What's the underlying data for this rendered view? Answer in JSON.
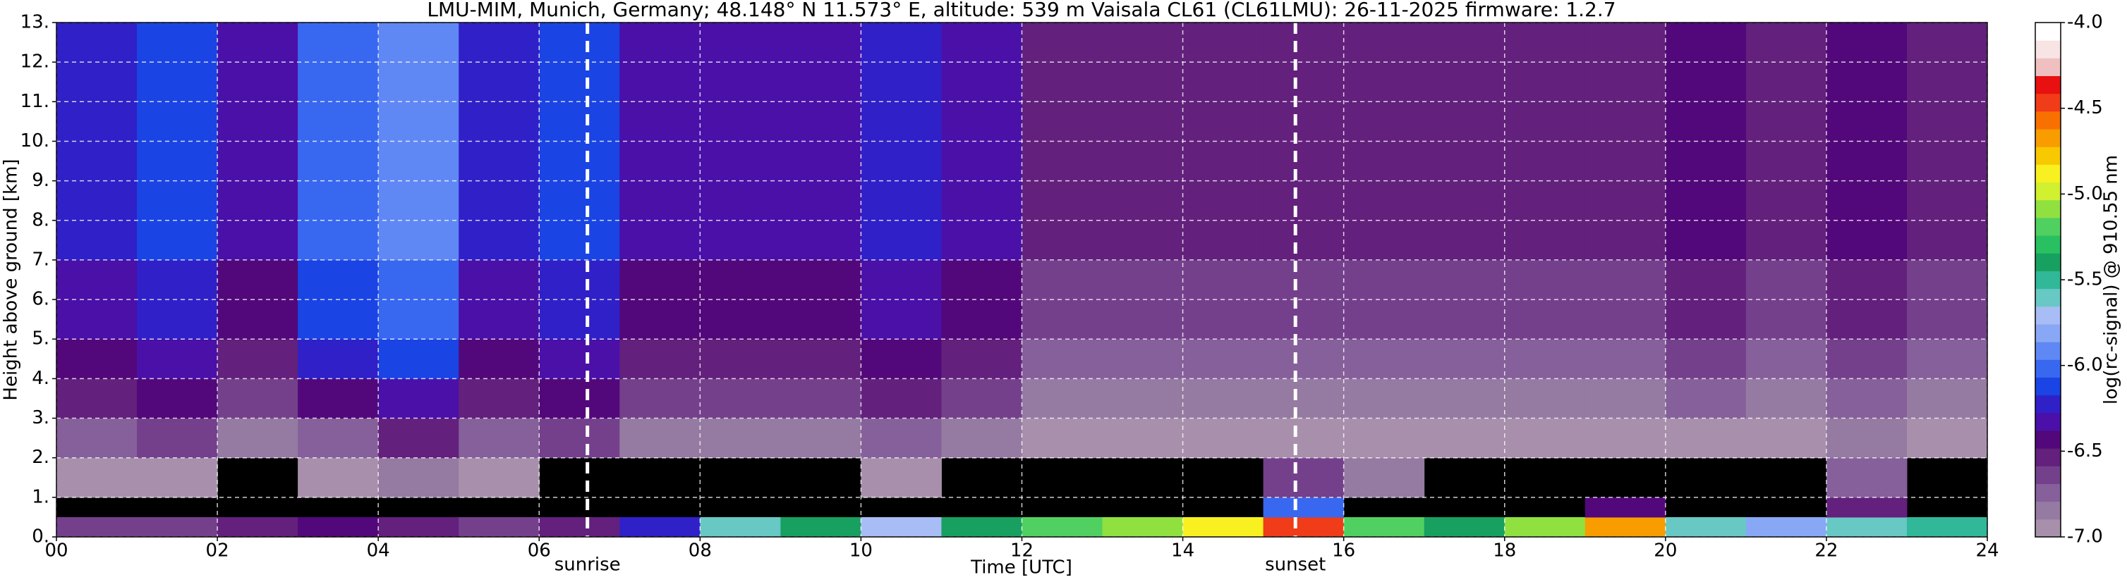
{
  "chart_data": {
    "type": "heatmap",
    "title": "LMU-MIM, Munich, Germany; 48.148° N 11.573° E, altitude: 539 m    Vaisala CL61 (CL61LMU): 26-11-2025    firmware: 1.2.7",
    "xlabel": "Time [UTC]",
    "ylabel": "Height above ground [km]",
    "colorbar_label": "log(rc-signal) @ 910.55 nm",
    "xlim": [
      0,
      24
    ],
    "ylim": [
      0,
      13
    ],
    "zlim": [
      -7,
      -4
    ],
    "xticks": [
      {
        "value": 0,
        "label": "00"
      },
      {
        "value": 2,
        "label": "02"
      },
      {
        "value": 4,
        "label": "04"
      },
      {
        "value": 6,
        "label": "06"
      },
      {
        "value": 8,
        "label": "08"
      },
      {
        "value": 10,
        "label": "10"
      },
      {
        "value": 12,
        "label": "12"
      },
      {
        "value": 14,
        "label": "14"
      },
      {
        "value": 16,
        "label": "16"
      },
      {
        "value": 18,
        "label": "18"
      },
      {
        "value": 20,
        "label": "20"
      },
      {
        "value": 22,
        "label": "22"
      },
      {
        "value": 24,
        "label": "24"
      }
    ],
    "yticks": [
      {
        "value": 0,
        "label": "0."
      },
      {
        "value": 1,
        "label": "1."
      },
      {
        "value": 2,
        "label": "2."
      },
      {
        "value": 3,
        "label": "3."
      },
      {
        "value": 4,
        "label": "4."
      },
      {
        "value": 5,
        "label": "5."
      },
      {
        "value": 6,
        "label": "6."
      },
      {
        "value": 7,
        "label": "7."
      },
      {
        "value": 8,
        "label": "8."
      },
      {
        "value": 9,
        "label": "9."
      },
      {
        "value": 10,
        "label": "10."
      },
      {
        "value": 11,
        "label": "11."
      },
      {
        "value": 12,
        "label": "12."
      },
      {
        "value": 13,
        "label": "13."
      }
    ],
    "zticks": [
      {
        "value": -4,
        "label": "-4.0"
      },
      {
        "value": -4.5,
        "label": "-4.5"
      },
      {
        "value": -5,
        "label": "-5.0"
      },
      {
        "value": -5.5,
        "label": "-5.5"
      },
      {
        "value": -6,
        "label": "-6.0"
      },
      {
        "value": -6.5,
        "label": "-6.5"
      },
      {
        "value": -7,
        "label": "-7.0"
      }
    ],
    "colorscale": [
      "#a890ac",
      "#957aa2",
      "#86609a",
      "#74408c",
      "#63207c",
      "#52087a",
      "#4a10a8",
      "#3020c8",
      "#1a44e4",
      "#3868f0",
      "#6088f4",
      "#88a8f6",
      "#a8bcf6",
      "#68c8c4",
      "#30b898",
      "#18a060",
      "#28c060",
      "#50d060",
      "#90e040",
      "#d0f030",
      "#f8f020",
      "#f8c800",
      "#f89c00",
      "#f87000",
      "#f03c18",
      "#e81010",
      "#f0c0c0",
      "#f8e4e4",
      "#ffffff"
    ],
    "grid": true,
    "x_edges": [
      0,
      1,
      2,
      3,
      4,
      5,
      6,
      7,
      8,
      9,
      10,
      11,
      12,
      13,
      14,
      15,
      16,
      17,
      18,
      19,
      20,
      21,
      22,
      23,
      24
    ],
    "y_edges": [
      0,
      0.5,
      1,
      2,
      3,
      4,
      5,
      6,
      7,
      8,
      9,
      10,
      11,
      12,
      13
    ],
    "z": [
      [
        -6.6,
        -6.6,
        -6.5,
        -6.4,
        -6.5,
        -6.6,
        -6.5,
        -6.2,
        -5.6,
        -5.4,
        -5.7,
        -5.4,
        -5.2,
        -5.1,
        -4.9,
        -4.5,
        -5.2,
        -5.4,
        -5.1,
        -4.7,
        -5.6,
        -5.8,
        -5.6,
        -5.5
      ],
      [
        null,
        null,
        null,
        null,
        null,
        null,
        null,
        null,
        null,
        null,
        null,
        null,
        null,
        null,
        null,
        -6.0,
        null,
        null,
        null,
        -6.4,
        null,
        null,
        -6.5,
        null
      ],
      [
        -6.9,
        -6.9,
        null,
        -6.9,
        -6.8,
        -6.9,
        null,
        null,
        null,
        null,
        -6.9,
        null,
        null,
        null,
        null,
        -6.6,
        -6.8,
        null,
        null,
        null,
        null,
        null,
        -6.7,
        null
      ],
      [
        -6.7,
        -6.6,
        -6.8,
        -6.7,
        -6.5,
        -6.7,
        -6.6,
        -6.8,
        -6.8,
        -6.8,
        -6.7,
        -6.8,
        -6.9,
        -6.9,
        -6.9,
        -6.9,
        -6.9,
        -6.9,
        -6.9,
        -6.9,
        -6.9,
        -6.9,
        -6.8,
        -6.9
      ],
      [
        -6.5,
        -6.4,
        -6.6,
        -6.4,
        -6.3,
        -6.5,
        -6.4,
        -6.6,
        -6.6,
        -6.6,
        -6.5,
        -6.6,
        -6.8,
        -6.8,
        -6.8,
        -6.8,
        -6.8,
        -6.8,
        -6.8,
        -6.8,
        -6.7,
        -6.8,
        -6.7,
        -6.8
      ],
      [
        -6.4,
        -6.3,
        -6.5,
        -6.2,
        -6.1,
        -6.4,
        -6.3,
        -6.5,
        -6.5,
        -6.5,
        -6.4,
        -6.5,
        -6.7,
        -6.7,
        -6.7,
        -6.7,
        -6.7,
        -6.7,
        -6.7,
        -6.7,
        -6.6,
        -6.7,
        -6.6,
        -6.7
      ],
      [
        -6.3,
        -6.2,
        -6.4,
        -6.1,
        -6.0,
        -6.3,
        -6.2,
        -6.4,
        -6.4,
        -6.4,
        -6.3,
        -6.4,
        -6.6,
        -6.6,
        -6.6,
        -6.6,
        -6.6,
        -6.6,
        -6.6,
        -6.6,
        -6.5,
        -6.6,
        -6.5,
        -6.6
      ],
      [
        -6.3,
        -6.2,
        -6.4,
        -6.1,
        -6.0,
        -6.3,
        -6.2,
        -6.4,
        -6.4,
        -6.4,
        -6.3,
        -6.4,
        -6.6,
        -6.6,
        -6.6,
        -6.6,
        -6.6,
        -6.6,
        -6.6,
        -6.6,
        -6.5,
        -6.6,
        -6.5,
        -6.6
      ],
      [
        -6.2,
        -6.1,
        -6.3,
        -6.0,
        -5.9,
        -6.2,
        -6.1,
        -6.3,
        -6.3,
        -6.3,
        -6.2,
        -6.3,
        -6.5,
        -6.5,
        -6.5,
        -6.5,
        -6.5,
        -6.5,
        -6.5,
        -6.5,
        -6.4,
        -6.5,
        -6.4,
        -6.5
      ],
      [
        -6.2,
        -6.1,
        -6.3,
        -6.0,
        -5.9,
        -6.2,
        -6.1,
        -6.3,
        -6.3,
        -6.3,
        -6.2,
        -6.3,
        -6.5,
        -6.5,
        -6.5,
        -6.5,
        -6.5,
        -6.5,
        -6.5,
        -6.5,
        -6.4,
        -6.5,
        -6.4,
        -6.5
      ],
      [
        -6.2,
        -6.1,
        -6.3,
        -6.0,
        -5.9,
        -6.2,
        -6.1,
        -6.3,
        -6.3,
        -6.3,
        -6.2,
        -6.3,
        -6.5,
        -6.5,
        -6.5,
        -6.5,
        -6.5,
        -6.5,
        -6.5,
        -6.5,
        -6.4,
        -6.5,
        -6.4,
        -6.5
      ],
      [
        -6.2,
        -6.1,
        -6.3,
        -6.0,
        -5.9,
        -6.2,
        -6.1,
        -6.3,
        -6.3,
        -6.3,
        -6.2,
        -6.3,
        -6.5,
        -6.5,
        -6.5,
        -6.5,
        -6.5,
        -6.5,
        -6.5,
        -6.5,
        -6.4,
        -6.5,
        -6.4,
        -6.5
      ],
      [
        -6.2,
        -6.1,
        -6.3,
        -6.0,
        -5.9,
        -6.2,
        -6.1,
        -6.3,
        -6.3,
        -6.3,
        -6.2,
        -6.3,
        -6.5,
        -6.5,
        -6.5,
        -6.5,
        -6.5,
        -6.5,
        -6.5,
        -6.5,
        -6.4,
        -6.5,
        -6.4,
        -6.5
      ],
      [
        -6.2,
        -6.1,
        -6.3,
        -6.0,
        -5.9,
        -6.2,
        -6.1,
        -6.3,
        -6.3,
        -6.3,
        -6.2,
        -6.3,
        -6.5,
        -6.5,
        -6.5,
        -6.5,
        -6.5,
        -6.5,
        -6.5,
        -6.5,
        -6.4,
        -6.5,
        -6.4,
        -6.5
      ]
    ],
    "annotations": [
      {
        "text": "sunrise",
        "x": 6.6
      },
      {
        "text": "sunset",
        "x": 15.4
      }
    ]
  }
}
